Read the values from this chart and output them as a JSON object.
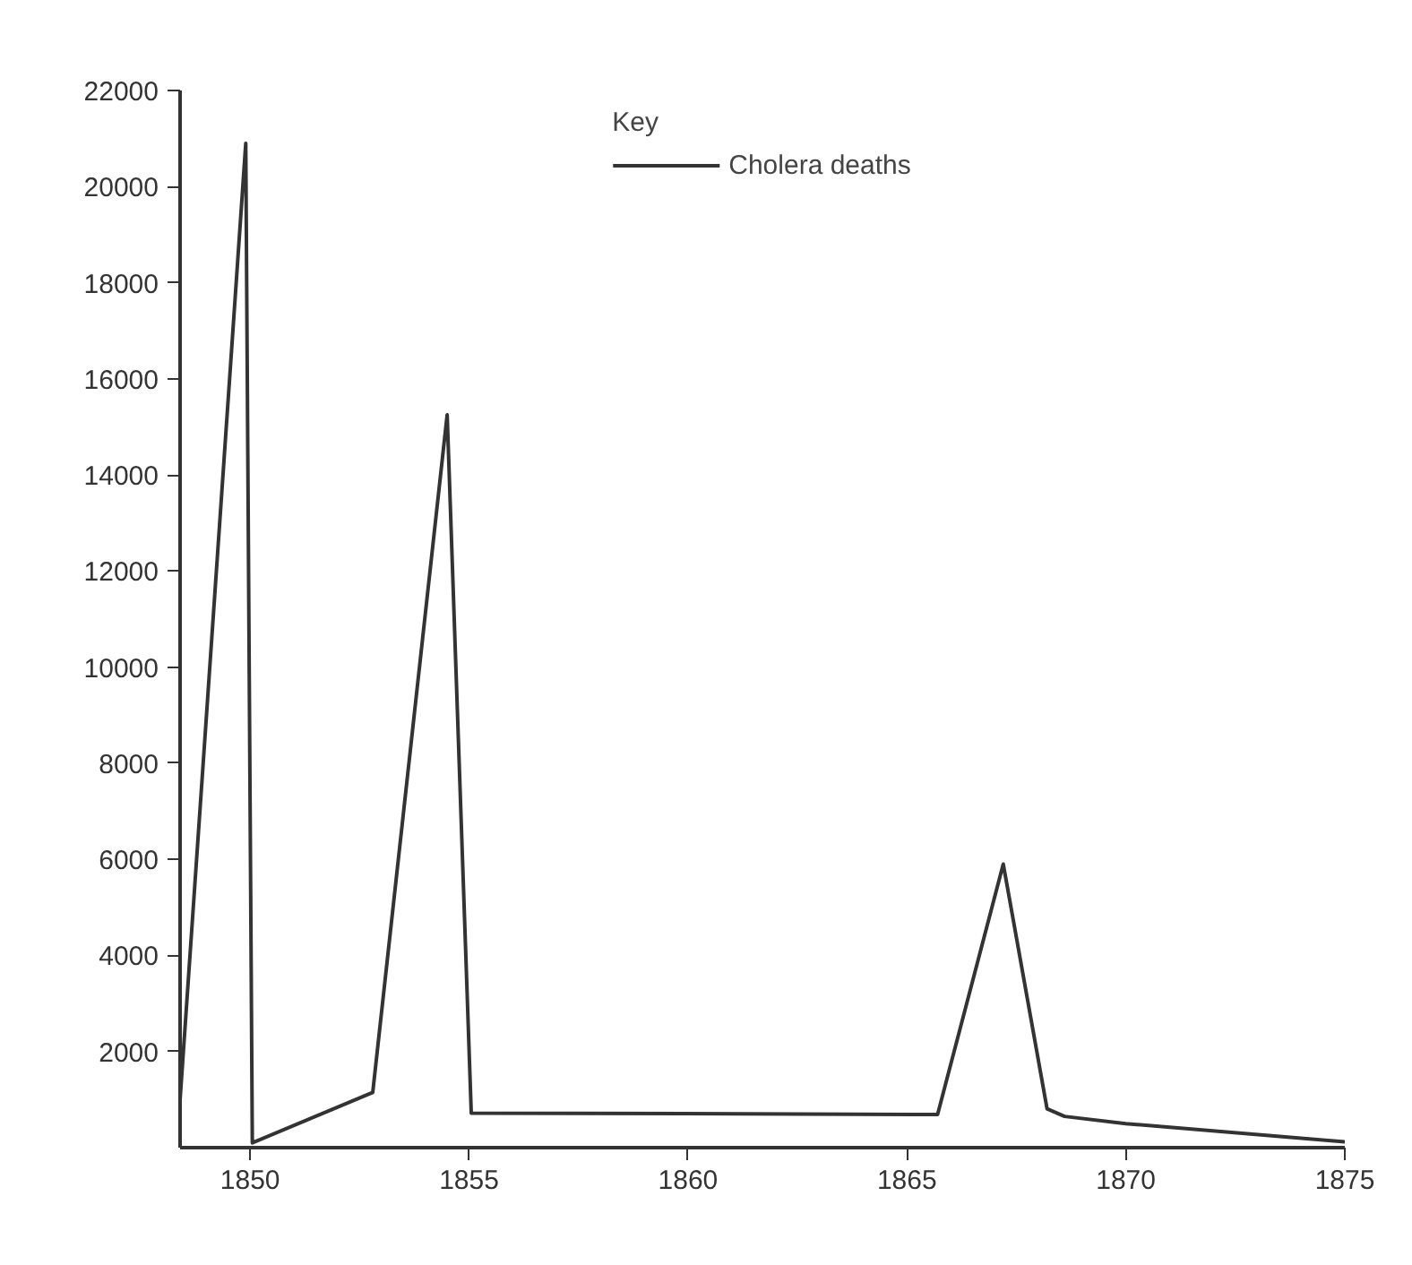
{
  "chart_data": {
    "type": "line",
    "legend_title": "Key",
    "x": [
      1848.4,
      1849.9,
      1850.05,
      1852.8,
      1854.5,
      1855.05,
      1865.7,
      1867.2,
      1868.2,
      1868.6,
      1870,
      1875
    ],
    "series": [
      {
        "name": "Cholera deaths",
        "color": "#333333",
        "values": [
          1000,
          20900,
          100,
          1150,
          15250,
          720,
          690,
          5900,
          810,
          650,
          500,
          120
        ]
      }
    ],
    "xlim": [
      1848.4,
      1875
    ],
    "xticks": [
      1850,
      1855,
      1860,
      1865,
      1870,
      1875
    ],
    "ylim": [
      0,
      22000
    ],
    "yticks": [
      2000,
      4000,
      6000,
      8000,
      10000,
      12000,
      14000,
      16000,
      18000,
      20000,
      22000
    ],
    "grid": false,
    "legend": "top",
    "marker": "none",
    "line_style": "solid"
  }
}
